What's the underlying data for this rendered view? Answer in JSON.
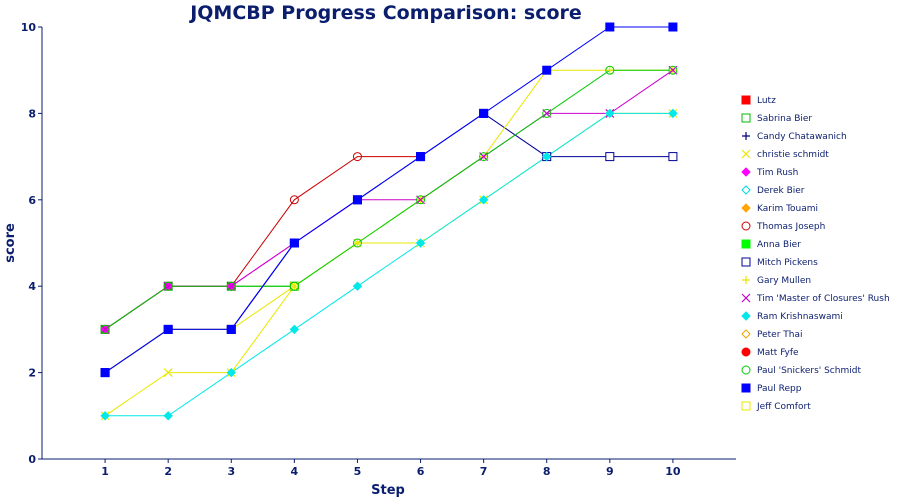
{
  "chart_data": {
    "type": "line",
    "title": "JQMCBP Progress Comparison: score",
    "xlabel": "Step",
    "ylabel": "score",
    "x": [
      1,
      2,
      3,
      4,
      5,
      6,
      7,
      8,
      9,
      10
    ],
    "xlim": [
      0,
      11
    ],
    "ylim": [
      0,
      10
    ],
    "yticks": [
      0,
      2,
      4,
      6,
      8,
      10
    ],
    "grid": false,
    "legend": "right",
    "series": [
      {
        "name": "Lutz",
        "color": "#ff0000",
        "marker": "square-filled",
        "values": [
          null,
          null,
          null,
          null,
          null,
          null,
          null,
          null,
          null,
          null
        ]
      },
      {
        "name": "Sabrina Bier",
        "color": "#00bb00",
        "marker": "square-open",
        "values": [
          3,
          4,
          4,
          4,
          null,
          null,
          null,
          null,
          null,
          null
        ]
      },
      {
        "name": "Candy Chatawanich",
        "color": "#000080",
        "marker": "plus",
        "values": [
          2,
          3,
          3,
          5,
          null,
          null,
          null,
          null,
          null,
          null
        ]
      },
      {
        "name": "christie schmidt",
        "color": "#e8e800",
        "marker": "x",
        "values": [
          1,
          2,
          2,
          4,
          5,
          5,
          6,
          7,
          8,
          8
        ]
      },
      {
        "name": "Tim Rush",
        "color": "#ff00ff",
        "marker": "diamond-filled",
        "values": [
          3,
          4,
          4,
          5,
          null,
          null,
          null,
          null,
          null,
          null
        ]
      },
      {
        "name": "Derek Bier",
        "color": "#00e0e0",
        "marker": "diamond-open",
        "values": [
          null,
          null,
          null,
          null,
          null,
          null,
          null,
          null,
          null,
          null
        ]
      },
      {
        "name": "Karim Touami",
        "color": "#ffa500",
        "marker": "diamond-filled",
        "values": [
          null,
          null,
          null,
          null,
          null,
          null,
          null,
          null,
          null,
          null
        ]
      },
      {
        "name": "Thomas Joseph",
        "color": "#cc0000",
        "marker": "circle-open",
        "values": [
          3,
          4,
          4,
          6,
          7,
          7,
          null,
          null,
          null,
          null
        ]
      },
      {
        "name": "Anna Bier",
        "color": "#00ff00",
        "marker": "square-filled",
        "values": [
          null,
          null,
          null,
          null,
          null,
          null,
          null,
          null,
          null,
          null
        ]
      },
      {
        "name": "Mitch Pickens",
        "color": "#000099",
        "marker": "square-open",
        "values": [
          2,
          3,
          3,
          5,
          6,
          7,
          8,
          7,
          7,
          7
        ]
      },
      {
        "name": "Gary Mullen",
        "color": "#e8e800",
        "marker": "plus",
        "values": [
          2,
          3,
          3,
          4,
          5,
          6,
          7,
          9,
          9,
          9
        ]
      },
      {
        "name": "Tim 'Master of Closures' Rush",
        "color": "#cc00cc",
        "marker": "x",
        "values": [
          3,
          4,
          4,
          5,
          6,
          6,
          7,
          8,
          8,
          9
        ]
      },
      {
        "name": "Ram Krishnaswami",
        "color": "#00e8e8",
        "marker": "diamond-filled",
        "values": [
          1,
          1,
          2,
          3,
          4,
          5,
          6,
          7,
          8,
          8
        ]
      },
      {
        "name": "Peter Thai",
        "color": "#e8a800",
        "marker": "diamond-open",
        "values": [
          null,
          null,
          null,
          null,
          null,
          null,
          null,
          null,
          null,
          null
        ]
      },
      {
        "name": "Matt Fyfe",
        "color": "#ff0000",
        "marker": "circle-filled",
        "values": [
          null,
          null,
          null,
          null,
          null,
          null,
          null,
          null,
          null,
          null
        ]
      },
      {
        "name": "Paul 'Snickers' Schmidt",
        "color": "#00cc00",
        "marker": "circle-open",
        "values": [
          3,
          4,
          4,
          4,
          5,
          6,
          7,
          8,
          9,
          9
        ]
      },
      {
        "name": "Paul Repp",
        "color": "#0000ff",
        "marker": "square-filled",
        "values": [
          2,
          3,
          3,
          5,
          6,
          7,
          8,
          9,
          10,
          10
        ]
      },
      {
        "name": "Jeff Comfort",
        "color": "#e8e800",
        "marker": "square-open",
        "values": [
          null,
          null,
          null,
          null,
          null,
          null,
          null,
          null,
          null,
          null
        ]
      }
    ]
  }
}
